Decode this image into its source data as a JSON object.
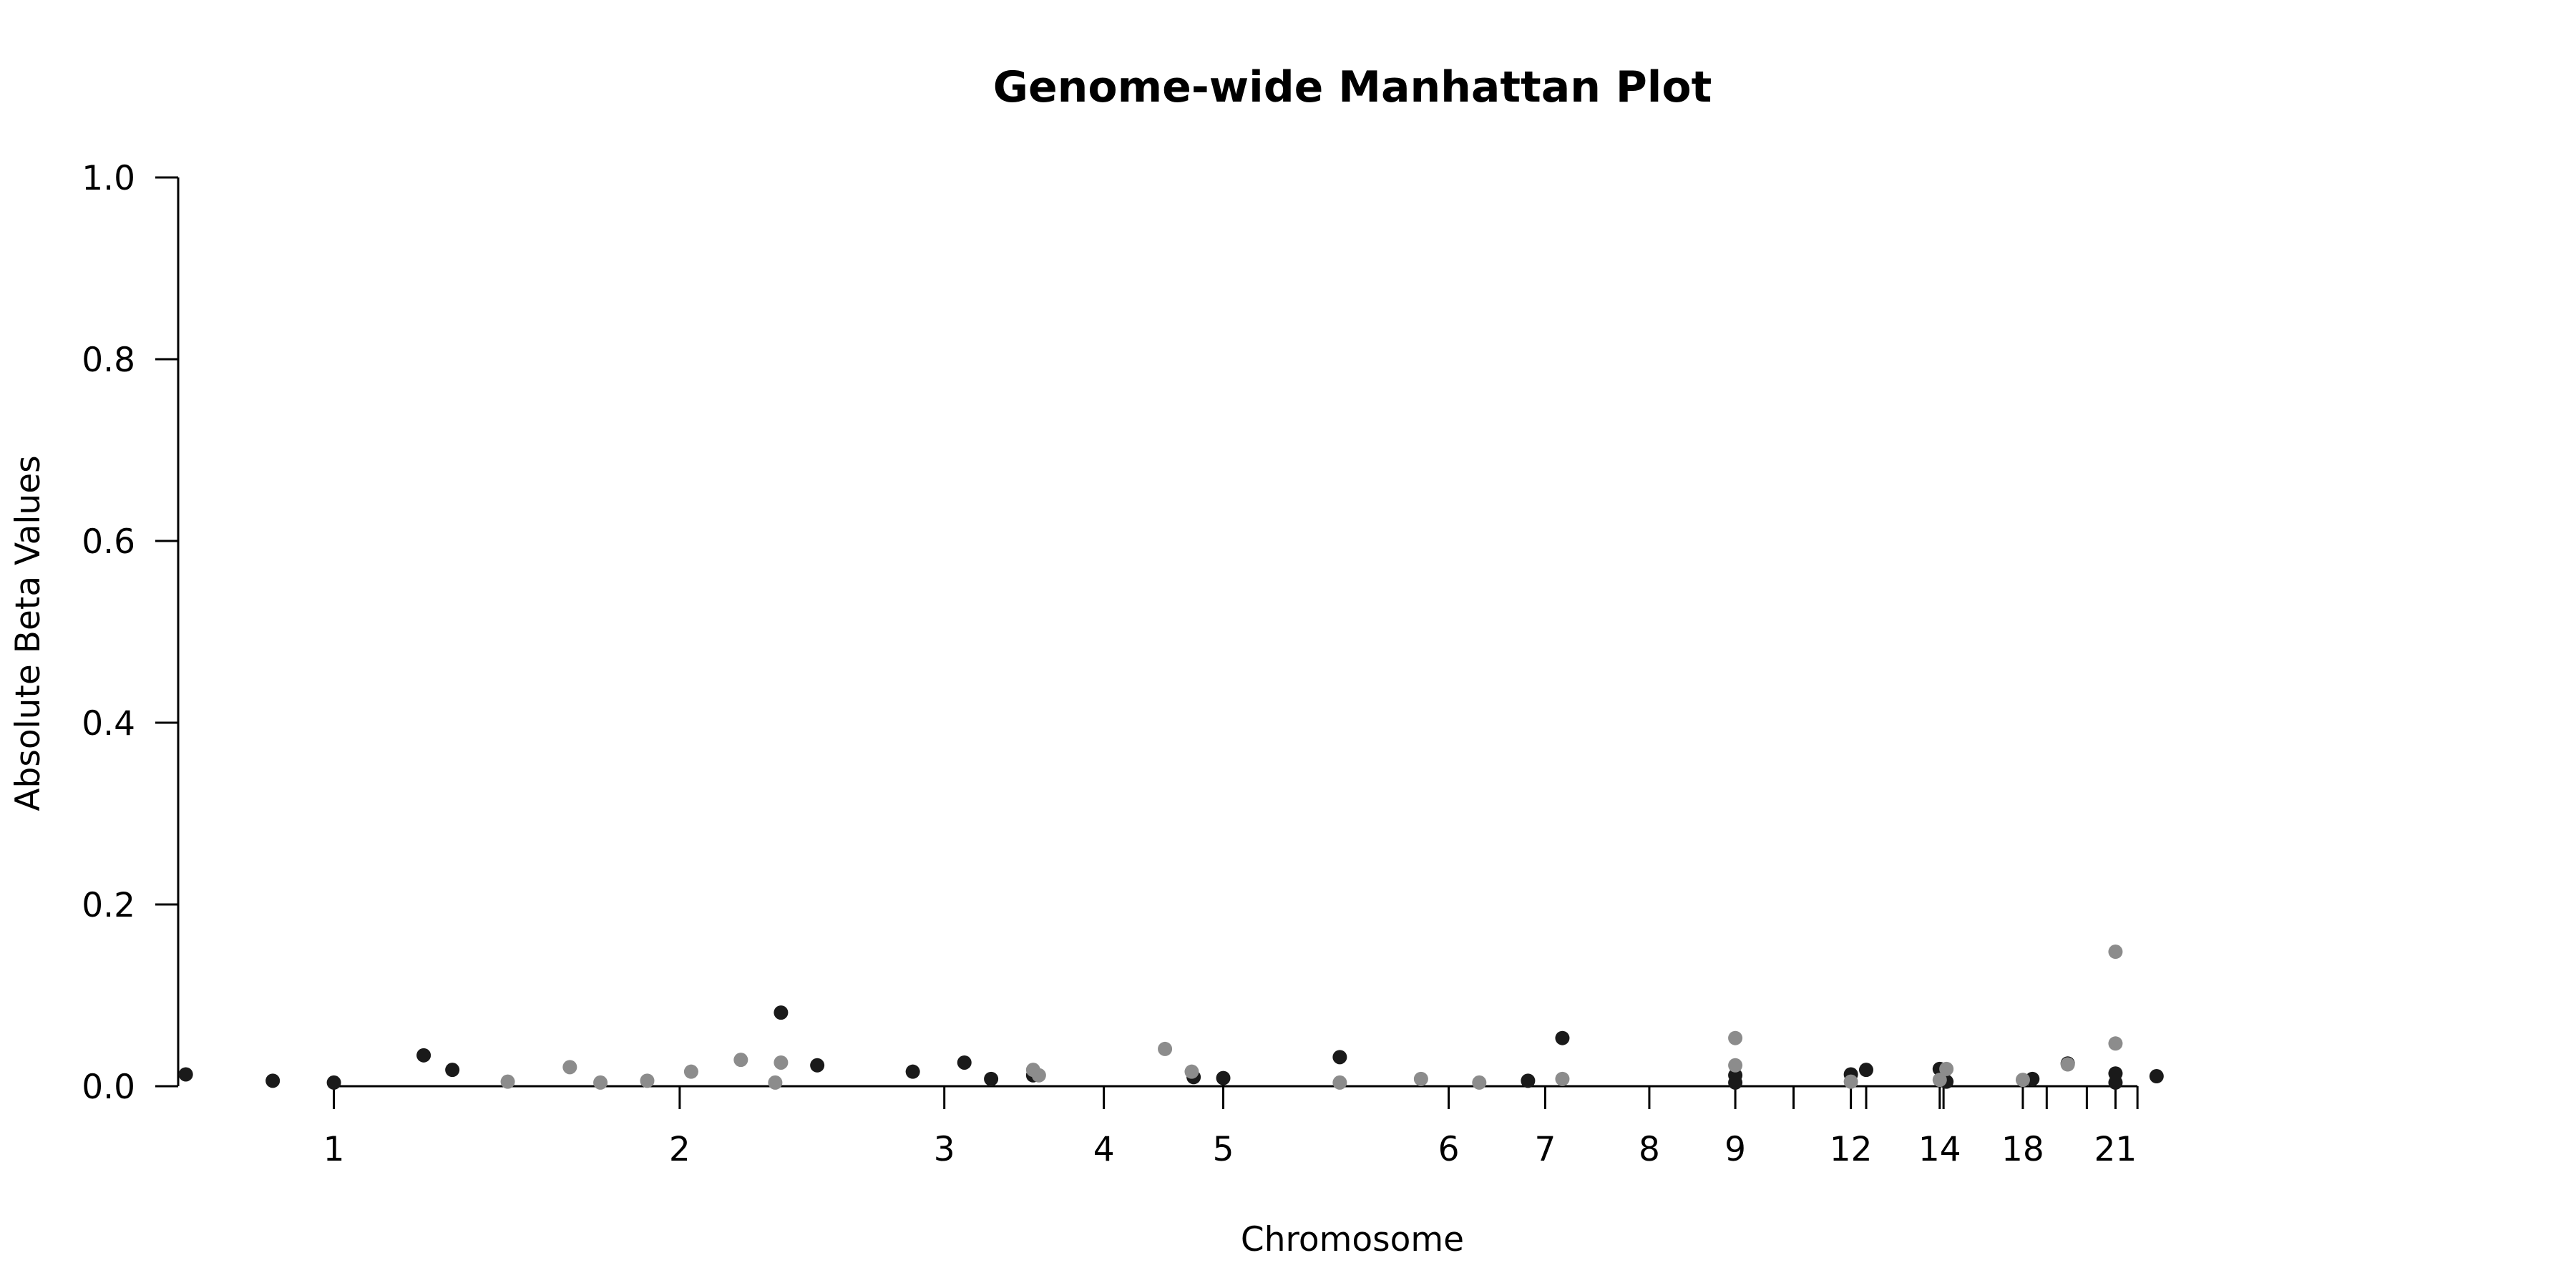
{
  "chart_data": {
    "type": "scatter",
    "title": "Genome-wide Manhattan Plot",
    "xlabel": "Chromosome",
    "ylabel": "Absolute Beta Values",
    "ylim": [
      0,
      1.0
    ],
    "xlim": [
      -0.63,
      22.98
    ],
    "yticks": [
      "0.0",
      "0.2",
      "0.4",
      "0.6",
      "0.8",
      "1.0"
    ],
    "xticks": [
      {
        "pos": 1.0,
        "label": "1"
      },
      {
        "pos": 4.62,
        "label": "2"
      },
      {
        "pos": 7.39,
        "label": "3"
      },
      {
        "pos": 9.06,
        "label": "4"
      },
      {
        "pos": 10.31,
        "label": "5"
      },
      {
        "pos": 12.67,
        "label": "6"
      },
      {
        "pos": 13.68,
        "label": "7"
      },
      {
        "pos": 14.77,
        "label": "8"
      },
      {
        "pos": 15.67,
        "label": "9"
      },
      {
        "pos": 16.28,
        "label": ""
      },
      {
        "pos": 16.88,
        "label": "12"
      },
      {
        "pos": 17.04,
        "label": ""
      },
      {
        "pos": 17.81,
        "label": "14"
      },
      {
        "pos": 17.85,
        "label": ""
      },
      {
        "pos": 18.68,
        "label": "18"
      },
      {
        "pos": 18.93,
        "label": ""
      },
      {
        "pos": 19.35,
        "label": ""
      },
      {
        "pos": 19.65,
        "label": "21"
      },
      {
        "pos": 19.88,
        "label": ""
      }
    ],
    "grid": false,
    "legend": "none",
    "colors": {
      "odd": "#1a1a1a",
      "even": "#8c8c8c"
    },
    "series": [
      {
        "color_key": "odd",
        "points": [
          [
            -0.55,
            0.013
          ],
          [
            0.36,
            0.006
          ],
          [
            1.0,
            0.004
          ],
          [
            1.94,
            0.034
          ],
          [
            2.24,
            0.018
          ],
          [
            5.68,
            0.081
          ],
          [
            6.06,
            0.023
          ],
          [
            7.06,
            0.016
          ],
          [
            7.6,
            0.026
          ],
          [
            7.88,
            0.008
          ],
          [
            8.32,
            0.012
          ],
          [
            10.0,
            0.01
          ],
          [
            10.31,
            0.009
          ],
          [
            11.53,
            0.032
          ],
          [
            13.5,
            0.006
          ],
          [
            13.86,
            0.053
          ],
          [
            15.67,
            0.012
          ],
          [
            15.67,
            0.004
          ],
          [
            16.88,
            0.013
          ],
          [
            17.04,
            0.018
          ],
          [
            17.81,
            0.019
          ],
          [
            17.88,
            0.005
          ],
          [
            18.78,
            0.008
          ],
          [
            19.15,
            0.025
          ],
          [
            19.65,
            0.014
          ],
          [
            19.65,
            0.004
          ],
          [
            20.08,
            0.011
          ]
        ]
      },
      {
        "color_key": "even",
        "points": [
          [
            2.82,
            0.005
          ],
          [
            3.47,
            0.021
          ],
          [
            3.79,
            0.004
          ],
          [
            4.28,
            0.006
          ],
          [
            4.74,
            0.016
          ],
          [
            5.26,
            0.029
          ],
          [
            5.62,
            0.004
          ],
          [
            5.68,
            0.026
          ],
          [
            8.32,
            0.018
          ],
          [
            8.38,
            0.012
          ],
          [
            9.7,
            0.041
          ],
          [
            9.98,
            0.016
          ],
          [
            11.53,
            0.004
          ],
          [
            12.38,
            0.008
          ],
          [
            12.99,
            0.004
          ],
          [
            13.86,
            0.008
          ],
          [
            15.67,
            0.053
          ],
          [
            15.67,
            0.023
          ],
          [
            16.88,
            0.005
          ],
          [
            17.81,
            0.007
          ],
          [
            17.88,
            0.019
          ],
          [
            18.68,
            0.007
          ],
          [
            19.15,
            0.024
          ],
          [
            19.65,
            0.148
          ],
          [
            19.65,
            0.047
          ]
        ]
      }
    ]
  }
}
